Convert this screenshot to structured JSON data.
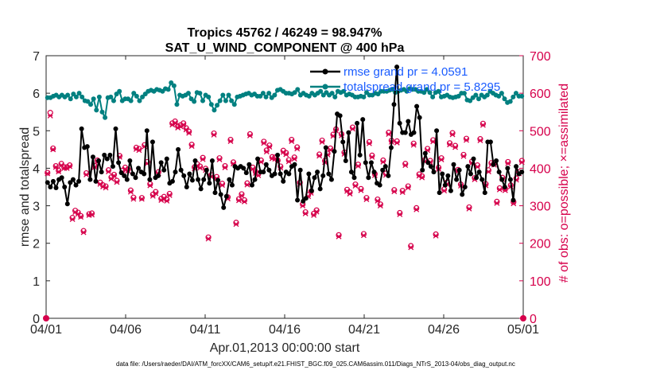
{
  "chart_data": {
    "type": "line",
    "title": "Tropics 45762 / 46249 = 98.947%",
    "subtitle": "SAT_U_WIND_COMPONENT @ 400 hPa",
    "xlabel": "Apr.01,2013 00:00:00 start",
    "ylabel_left": "rmse and totalspread",
    "ylabel_right": "# of obs: o=possible; ×=assimilated",
    "footnote": "data file: /Users/raeder/DAI/ATM_forcXX/CAM6_setup/f.e21.FHIST_BGC.f09_025.CAM6assim.011/Diags_NTrS_2013-04/obs_diag_output.nc",
    "x_ticks": [
      "04/01",
      "04/06",
      "04/11",
      "04/16",
      "04/21",
      "04/26",
      "05/01"
    ],
    "x_tick_days": [
      0,
      5,
      10,
      15,
      20,
      25,
      30
    ],
    "xlim": [
      0,
      30
    ],
    "ylim_left": [
      0,
      7
    ],
    "y_ticks_left": [
      "0",
      "1",
      "2",
      "3",
      "4",
      "5",
      "6",
      "7"
    ],
    "ylim_right": [
      0,
      700
    ],
    "y_ticks_right": [
      "0",
      "100",
      "200",
      "300",
      "400",
      "500",
      "600",
      "700"
    ],
    "colors": {
      "rmse": "#000000",
      "spread": "#008080",
      "obs": "#d6004b",
      "legend_text": "#1a5cff"
    },
    "series": [
      {
        "name": "rmse",
        "legend": "rmse grand pr = 4.0591",
        "values": [
          3.62,
          3.5,
          3.65,
          3.48,
          3.7,
          3.75,
          3.5,
          3.05,
          3.62,
          3.7,
          3.55,
          3.65,
          5.05,
          4.55,
          4.58,
          3.7,
          4.3,
          3.65,
          4.2,
          3.9,
          4.35,
          4.25,
          4.35,
          4.05,
          5.05,
          4.15,
          3.88,
          3.8,
          3.7,
          4.2,
          3.85,
          3.75,
          4.0,
          3.9,
          3.85,
          5.0,
          3.7,
          4.7,
          3.75,
          3.8,
          4.15,
          3.95,
          4.25,
          3.6,
          3.65,
          3.9,
          4.5,
          3.95,
          3.8,
          3.5,
          3.85,
          3.68,
          4.2,
          3.7,
          3.45,
          3.7,
          3.95,
          3.6,
          4.2,
          3.35,
          3.68,
          3.3,
          2.95,
          3.25,
          3.7,
          3.55,
          4.05,
          4.0,
          4.05,
          4.0,
          3.88,
          4.1,
          3.55,
          3.7,
          4.25,
          3.9,
          3.9,
          4.1,
          3.95,
          3.8,
          3.85,
          4.35,
          3.85,
          3.65,
          3.9,
          3.85,
          4.05,
          4.1,
          3.15,
          3.95,
          3.12,
          3.2,
          3.85,
          3.4,
          3.75,
          3.9,
          3.45,
          3.8,
          4.55,
          3.85,
          3.7,
          4.45,
          5.45,
          5.4,
          4.7,
          4.2,
          4.95,
          3.9,
          3.75,
          5.2,
          4.35,
          5.3,
          4.15,
          3.75,
          4.15,
          3.9,
          3.6,
          3.55,
          3.95,
          4.05,
          3.8,
          4.55,
          5.7,
          6.7,
          5.2,
          4.95,
          4.95,
          5.25,
          4.9,
          4.95,
          5.65,
          5.35,
          3.95,
          4.4,
          4.15,
          4.05,
          3.9,
          5.0,
          3.35,
          3.85,
          3.55,
          3.8,
          3.4,
          4.1,
          3.7,
          3.95,
          3.3,
          3.5,
          4.05,
          3.85,
          4.25,
          3.75,
          3.9,
          3.7,
          3.35,
          4.7,
          4.7,
          4.1,
          4.2,
          3.9,
          3.7,
          3.5,
          4.0,
          3.7,
          3.15,
          4.05,
          3.85,
          3.9
        ],
        "marker": "circle"
      },
      {
        "name": "totalspread",
        "legend": "totalspread grand pr = 5.8295",
        "values": [
          5.88,
          5.88,
          5.92,
          5.95,
          5.9,
          5.95,
          5.9,
          5.95,
          5.85,
          5.98,
          5.9,
          6.0,
          5.9,
          5.8,
          5.78,
          5.7,
          5.85,
          5.55,
          5.9,
          5.5,
          5.35,
          5.88,
          5.9,
          5.8,
          5.98,
          6.05,
          5.8,
          5.85,
          5.85,
          5.8,
          6.0,
          5.92,
          5.8,
          5.9,
          5.98,
          6.05,
          6.08,
          6.05,
          6.1,
          6.08,
          6.05,
          6.12,
          6.1,
          6.28,
          6.2,
          5.7,
          5.95,
          5.92,
          5.95,
          6.0,
          5.85,
          5.78,
          6.02,
          6.0,
          5.8,
          5.95,
          5.9,
          5.7,
          5.55,
          5.68,
          5.8,
          5.95,
          5.8,
          5.95,
          5.8,
          5.7,
          5.9,
          5.92,
          5.95,
          5.98,
          6.0,
          5.95,
          5.98,
          5.92,
          5.92,
          6.0,
          5.9,
          6.0,
          5.88,
          5.95,
          6.08,
          6.1,
          6.05,
          6.0,
          6.0,
          5.98,
          6.02,
          6.1,
          5.95,
          6.0,
          5.95,
          5.92,
          6.0,
          5.95,
          6.0,
          6.05,
          5.95,
          6.02,
          5.95,
          6.0,
          5.9,
          6.05,
          6.02,
          6.05,
          5.95,
          5.98,
          5.95,
          5.9,
          5.9,
          5.92,
          5.9,
          6.02,
          5.95,
          5.95,
          6.0,
          5.98,
          6.05,
          6.05,
          6.05,
          6.08,
          6.1,
          6.02,
          6.05,
          6.08,
          6.1,
          6.05,
          6.12,
          6.1,
          6.1,
          6.05,
          6.05,
          6.02,
          6.1,
          6.02,
          5.9,
          6.02,
          6.05,
          5.9,
          5.92,
          5.95,
          5.9,
          5.88,
          5.9,
          5.92,
          6.0,
          6.0,
          5.82,
          5.8,
          5.88,
          5.95,
          5.85,
          5.95,
          5.9,
          5.95,
          6.05,
          6.0,
          5.95,
          5.92,
          6.0,
          5.85,
          5.75,
          5.78,
          5.9,
          6.0,
          5.92,
          5.92
        ],
        "marker": "circle"
      },
      {
        "name": "obs_possible",
        "values": [
          388,
          548,
          453,
          406,
          394,
          412,
          403,
          403,
          408,
          268,
          287,
          282,
          273,
          233,
          387,
          278,
          280,
          407,
          421,
          362,
          355,
          352,
          395,
          376,
          383,
          367,
          433,
          394,
          402,
          397,
          341,
          322,
          455,
          452,
          321,
          462,
          417,
          358,
          330,
          337,
          390,
          319,
          324,
          317,
          332,
          520,
          525,
          512,
          515,
          520,
          507,
          498,
          463,
          403,
          411,
          405,
          428,
          399,
          216,
          382,
          493,
          377,
          427,
          359,
          406,
          323,
          476,
          416,
          255,
          318,
          331,
          315,
          360,
          491,
          402,
          391,
          385,
          421,
          471,
          448,
          461,
          430,
          429,
          421,
          405,
          447,
          441,
          422,
          476,
          429,
          456,
          362,
          304,
          283,
          329,
          338,
          279,
          288,
          437,
          474,
          420,
          440,
          453,
          490,
          504,
          222,
          491,
          442,
          343,
          336,
          509,
          357,
          410,
          345,
          225,
          321,
          470,
          434,
          385,
          317,
          304,
          421,
          386,
          495,
          474,
          342,
          472,
          281,
          340,
          412,
          352,
          193,
          466,
          294,
          384,
          379,
          422,
          452,
          420,
          475,
          224,
          402,
          427,
          344,
          362,
          467,
          494,
          460,
          396,
          357,
          436,
          479,
          296,
          418,
          374,
          408,
          478,
          519,
          358,
          395,
          414,
          413,
          311,
          347,
          375,
          345,
          417,
          355,
          310,
          373,
          390,
          420
        ],
        "marker": "o"
      },
      {
        "name": "obs_assimilated",
        "values": [
          386,
          540,
          450,
          403,
          391,
          408,
          400,
          400,
          405,
          264,
          283,
          278,
          270,
          229,
          383,
          275,
          276,
          403,
          417,
          358,
          351,
          348,
          391,
          372,
          380,
          363,
          430,
          390,
          398,
          393,
          337,
          318,
          451,
          448,
          318,
          458,
          413,
          354,
          326,
          333,
          386,
          315,
          320,
          313,
          328,
          516,
          521,
          508,
          511,
          516,
          503,
          494,
          459,
          399,
          407,
          401,
          424,
          395,
          212,
          378,
          489,
          373,
          423,
          355,
          402,
          319,
          472,
          412,
          251,
          314,
          327,
          311,
          356,
          487,
          398,
          387,
          381,
          417,
          467,
          444,
          457,
          426,
          425,
          417,
          401,
          443,
          437,
          418,
          472,
          425,
          452,
          358,
          300,
          279,
          325,
          334,
          275,
          284,
          433,
          470,
          416,
          436,
          449,
          486,
          500,
          218,
          487,
          438,
          339,
          332,
          505,
          353,
          406,
          341,
          221,
          317,
          466,
          430,
          381,
          313,
          300,
          417,
          382,
          491,
          470,
          338,
          468,
          277,
          336,
          408,
          348,
          189,
          462,
          290,
          380,
          375,
          418,
          448,
          416,
          471,
          220,
          398,
          423,
          340,
          358,
          463,
          490,
          456,
          392,
          353,
          432,
          475,
          292,
          414,
          370,
          404,
          474,
          515,
          354,
          391,
          410,
          409,
          307,
          343,
          371,
          341,
          413,
          351,
          306,
          369,
          386,
          416
        ],
        "marker": "x"
      }
    ]
  }
}
